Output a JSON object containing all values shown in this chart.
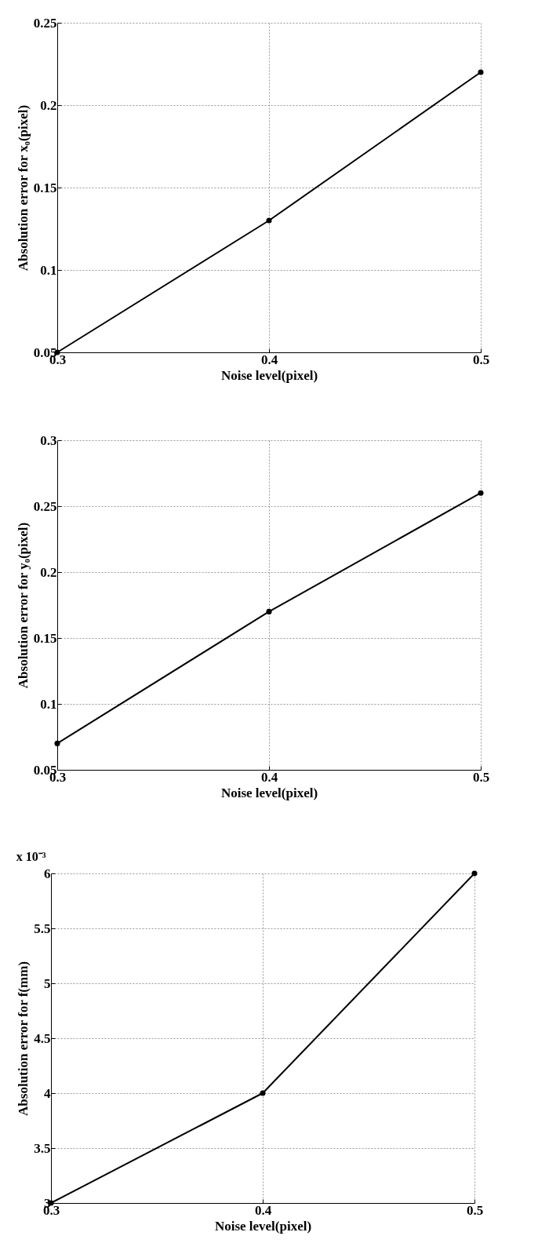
{
  "chart_data": [
    {
      "type": "line",
      "xlabel": "Noise level(pixel)",
      "ylabel": "Absolution error for x₀(pixel)",
      "x": [
        0.3,
        0.4,
        0.5
      ],
      "values": [
        0.05,
        0.13,
        0.22
      ],
      "color": "#000000",
      "xlim": [
        0.3,
        0.5
      ],
      "xticks": [
        0.3,
        0.4,
        0.5
      ],
      "ylim": [
        0.05,
        0.25
      ],
      "yticks": [
        0.05,
        0.1,
        0.15,
        0.2,
        0.25
      ],
      "grid": true,
      "marker": "circle",
      "line_style": "solid"
    },
    {
      "type": "line",
      "xlabel": "Noise level(pixel)",
      "ylabel": "Absolution error for y₀(pixel)",
      "x": [
        0.3,
        0.4,
        0.5
      ],
      "values": [
        0.07,
        0.17,
        0.26
      ],
      "color": "#000000",
      "xlim": [
        0.3,
        0.5
      ],
      "xticks": [
        0.3,
        0.4,
        0.5
      ],
      "ylim": [
        0.05,
        0.3
      ],
      "yticks": [
        0.05,
        0.1,
        0.15,
        0.2,
        0.25,
        0.3
      ],
      "grid": true,
      "marker": "circle",
      "line_style": "solid"
    },
    {
      "type": "line",
      "xlabel": "Noise level(pixel)",
      "ylabel": "Absolution error for f(mm)",
      "annotations": [
        "x 10⁻³"
      ],
      "x": [
        0.3,
        0.4,
        0.5
      ],
      "values": [
        3,
        4,
        6
      ],
      "color": "#000000",
      "xlim": [
        0.3,
        0.5
      ],
      "xticks": [
        0.3,
        0.4,
        0.5
      ],
      "ylim": [
        3,
        6
      ],
      "yticks": [
        3,
        3.5,
        4,
        4.5,
        5,
        5.5,
        6
      ],
      "grid": true,
      "marker": "circle",
      "line_style": "solid"
    }
  ]
}
